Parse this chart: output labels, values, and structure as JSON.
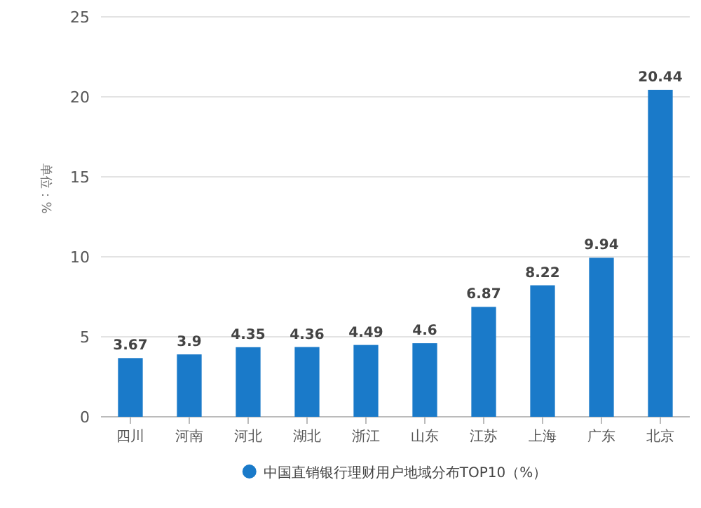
{
  "chart_data": {
    "type": "bar",
    "ylabel": "单位：%",
    "categories": [
      "四川",
      "河南",
      "河北",
      "湖北",
      "浙江",
      "山东",
      "江苏",
      "上海",
      "广东",
      "北京"
    ],
    "series": [
      {
        "name": "中国直销银行理财用户地域分布TOP10（%）",
        "color": "#1a7ac9",
        "values": [
          3.67,
          3.9,
          4.35,
          4.36,
          4.49,
          4.6,
          6.87,
          8.22,
          9.94,
          20.44
        ]
      }
    ],
    "ylim": [
      0,
      25
    ],
    "yticks": [
      0,
      5,
      10,
      15,
      20,
      25
    ],
    "grid": "y",
    "data_labels": true,
    "legend": "bottom"
  }
}
